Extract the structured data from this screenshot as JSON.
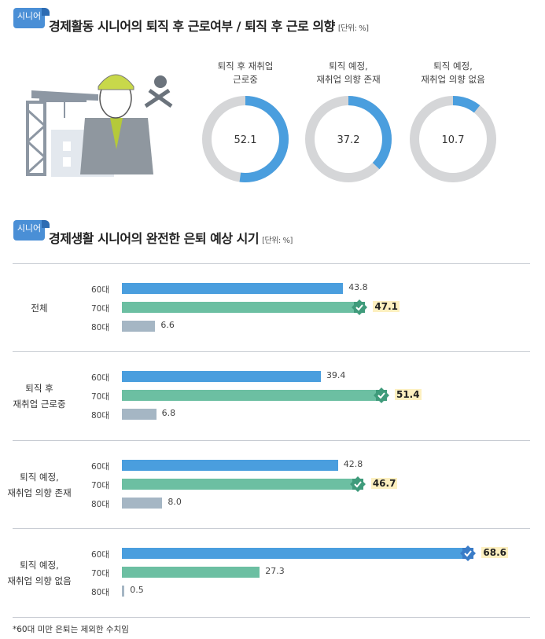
{
  "section1": {
    "tag": "시니어",
    "title": "경제활동 시니어의 퇴직 후 근로여부 / 퇴직 후 근로 의향",
    "unit": "[단위: %]"
  },
  "section2": {
    "tag": "시니어",
    "title": "경제생활 시니어의 완전한 은퇴 예상 시기",
    "unit": "[단위: %]"
  },
  "footnote": "*60대 미만 은퇴는 제외한 수치임",
  "colors": {
    "blue": "#4a9ede",
    "green": "#6cbfa2",
    "gray": "#a5b6c4",
    "ring_bg": "#d5d6d8",
    "badge_blue": "#3a7cc7",
    "badge_green": "#3f9b7b"
  },
  "chart_data": [
    {
      "type": "pie",
      "variant": "donut",
      "slices": [
        {
          "label": [
            "퇴직 후 재취업",
            "근로중"
          ],
          "value": 52.1,
          "text": "52.1"
        },
        {
          "label": [
            "퇴직 예정,",
            "재취업 의향 존재"
          ],
          "value": 37.2,
          "text": "37.2"
        },
        {
          "label": [
            "퇴직 예정,",
            "재취업 의향 없음"
          ],
          "value": 10.7,
          "text": "10.7"
        }
      ]
    },
    {
      "type": "bar",
      "orientation": "horizontal",
      "categories": [
        "60대",
        "70대",
        "80대"
      ],
      "groups": [
        {
          "label": [
            "전체"
          ],
          "values": [
            43.8,
            47.1,
            6.6
          ],
          "texts": [
            "43.8",
            "47.1",
            "6.6"
          ],
          "highlight": 1
        },
        {
          "label": [
            "퇴직 후",
            "재취업 근로중"
          ],
          "values": [
            39.4,
            51.4,
            6.8
          ],
          "texts": [
            "39.4",
            "51.4",
            "6.8"
          ],
          "highlight": 1
        },
        {
          "label": [
            "퇴직 예정,",
            "재취업 의향 존재"
          ],
          "values": [
            42.8,
            46.7,
            8.0
          ],
          "texts": [
            "42.8",
            "46.7",
            "8.0"
          ],
          "highlight": 1
        },
        {
          "label": [
            "퇴직 예정,",
            "재취업 의향 없음"
          ],
          "values": [
            68.6,
            27.3,
            0.5
          ],
          "texts": [
            "68.6",
            "27.3",
            "0.5"
          ],
          "highlight": 0
        }
      ]
    }
  ]
}
